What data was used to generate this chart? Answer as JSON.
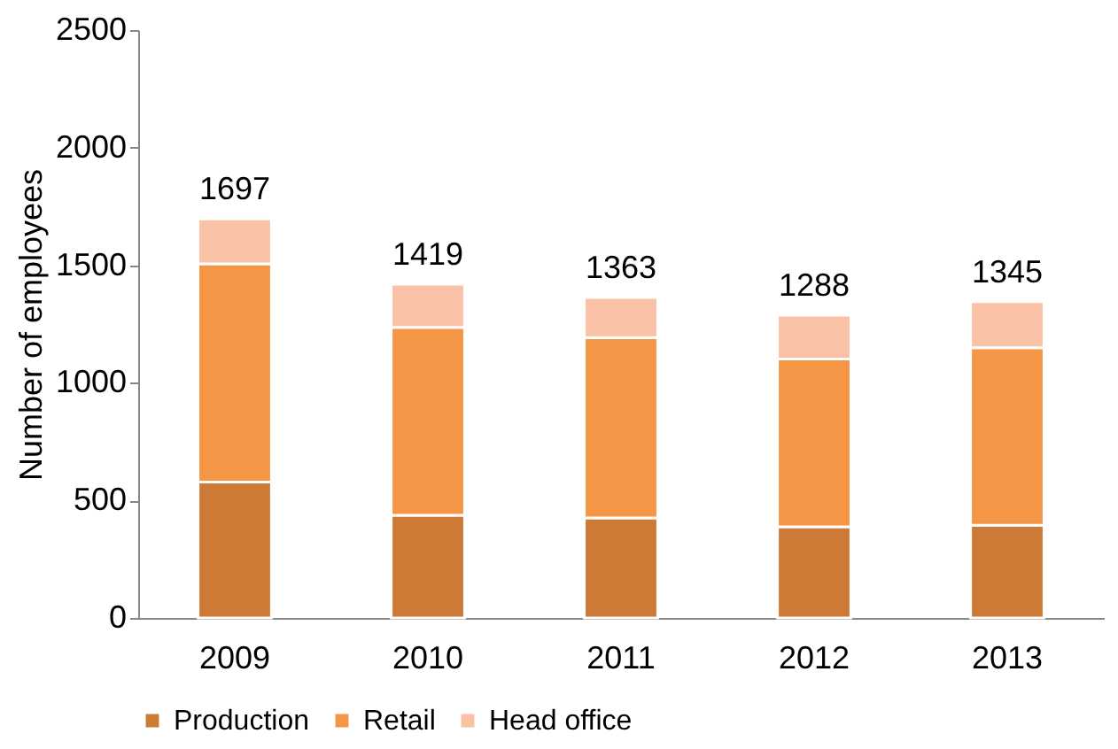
{
  "chart_data": {
    "type": "bar",
    "stacked": true,
    "ylabel": "Number of employees",
    "categories": [
      "2009",
      "2010",
      "2011",
      "2012",
      "2013"
    ],
    "series": [
      {
        "name": "Production",
        "color": "#cc7a36",
        "values": [
          578,
          437,
          425,
          388,
          394
        ]
      },
      {
        "name": "Retail",
        "color": "#f49646",
        "values": [
          928,
          799,
          768,
          713,
          755
        ]
      },
      {
        "name": "Head office",
        "color": "#f9c1a5",
        "values": [
          191,
          183,
          170,
          187,
          196
        ]
      }
    ],
    "totals": [
      "1697",
      "1419",
      "1363",
      "1288",
      "1345"
    ],
    "ylim": [
      0,
      2500
    ],
    "yticks": [
      0,
      500,
      1000,
      1500,
      2000,
      2500
    ],
    "grid": false,
    "legend": "bottom"
  }
}
